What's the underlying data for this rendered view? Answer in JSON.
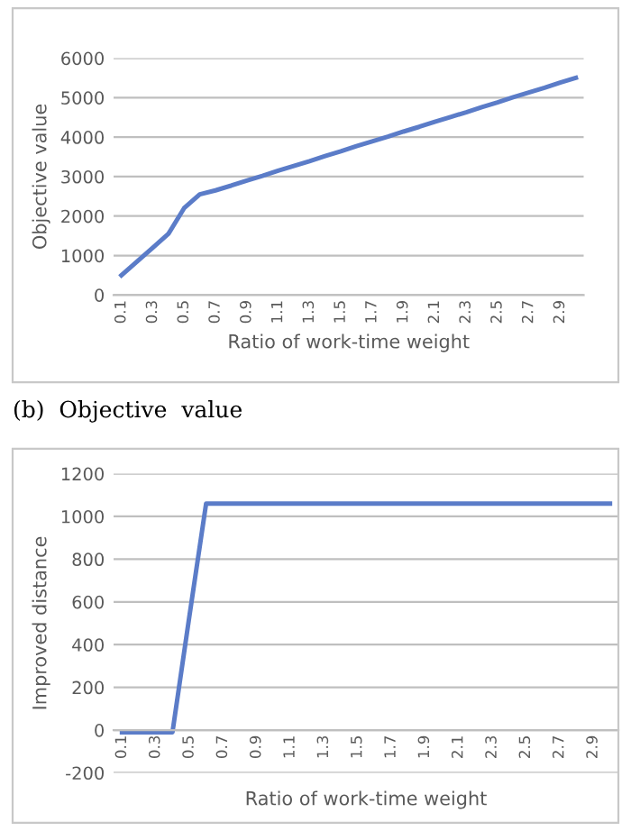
{
  "chart_data": [
    {
      "type": "line",
      "xlabel": "Ratio of work-time weight",
      "ylabel": "Objective value",
      "categories": [
        "0.1",
        null,
        "0.3",
        null,
        "0.5",
        null,
        "0.7",
        null,
        "0.9",
        null,
        "1.1",
        null,
        "1.3",
        null,
        "1.5",
        null,
        "1.7",
        null,
        "1.9",
        null,
        "2.1",
        null,
        "2.3",
        null,
        "2.5",
        null,
        "2.7",
        null,
        "2.9",
        null
      ],
      "series": [
        {
          "color": "#5b7cc8",
          "values": [
            500,
            850,
            1200,
            1550,
            2200,
            2550,
            2650,
            2770,
            2900,
            3020,
            3150,
            3270,
            3390,
            3520,
            3640,
            3770,
            3890,
            4010,
            4140,
            4260,
            4390,
            4510,
            4630,
            4760,
            4880,
            5010,
            5130,
            5250,
            5380,
            5500
          ]
        }
      ],
      "ylim": [
        0,
        6000
      ],
      "yticks": [
        0,
        1000,
        2000,
        3000,
        4000,
        5000,
        6000
      ],
      "grid": "y",
      "legend": false,
      "annotations": [
        "(b)  Objective  value"
      ]
    },
    {
      "type": "line",
      "xlabel": "Ratio of work-time weight",
      "ylabel": "Improved distance",
      "categories": [
        "0.1",
        null,
        "0.3",
        null,
        "0.5",
        null,
        "0.7",
        null,
        "0.9",
        null,
        "1.1",
        null,
        "1.3",
        null,
        "1.5",
        null,
        "1.7",
        null,
        "1.9",
        null,
        "2.1",
        null,
        "2.3",
        null,
        "2.5",
        null,
        "2.7",
        null,
        "2.9",
        null
      ],
      "series": [
        {
          "color": "#5b7cc8",
          "values": [
            -10,
            -10,
            -10,
            -10,
            530,
            1060,
            1060,
            1060,
            1060,
            1060,
            1060,
            1060,
            1060,
            1060,
            1060,
            1060,
            1060,
            1060,
            1060,
            1060,
            1060,
            1060,
            1060,
            1060,
            1060,
            1060,
            1060,
            1060,
            1060,
            1060
          ]
        }
      ],
      "ylim": [
        -200,
        1200
      ],
      "yticks": [
        -200,
        0,
        200,
        400,
        600,
        800,
        1000,
        1200
      ],
      "grid": "y",
      "legend": false
    }
  ]
}
